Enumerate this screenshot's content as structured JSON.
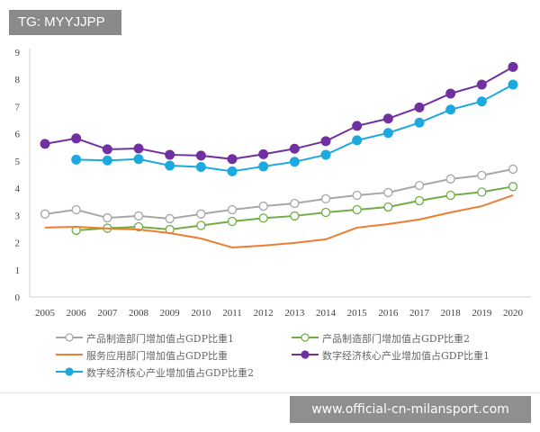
{
  "overlay": {
    "tag": "TG: MYYJJPP",
    "watermark": "www.official-cn-milansport.com"
  },
  "chart_data": {
    "type": "line",
    "x": [
      2005,
      2006,
      2007,
      2008,
      2009,
      2010,
      2011,
      2012,
      2013,
      2014,
      2015,
      2016,
      2017,
      2018,
      2019,
      2020
    ],
    "ylim": [
      0,
      9
    ],
    "yticks": [
      0,
      1,
      2,
      3,
      4,
      5,
      6,
      7,
      8,
      9
    ],
    "grid": false,
    "legend": "bottom",
    "series": [
      {
        "name": "产品制造部门增加值占GDP比重1",
        "color": "#a6a6a6",
        "marker": "hollow-circle",
        "values": [
          3.05,
          3.21,
          2.91,
          2.98,
          2.88,
          3.05,
          3.21,
          3.34,
          3.44,
          3.61,
          3.74,
          3.84,
          4.1,
          4.34,
          4.47,
          4.7
        ]
      },
      {
        "name": "产品制造部门增加值占GDP比重2",
        "color": "#70ad47",
        "marker": "hollow-circle",
        "values": [
          null,
          2.45,
          2.53,
          2.58,
          2.48,
          2.63,
          2.78,
          2.9,
          2.98,
          3.11,
          3.21,
          3.31,
          3.54,
          3.74,
          3.86,
          4.06
        ]
      },
      {
        "name": "服务应用部门增加值占GDP比重",
        "color": "#ed7d31",
        "marker": "none",
        "values": [
          2.55,
          2.58,
          2.52,
          2.48,
          2.35,
          2.15,
          1.82,
          1.89,
          1.99,
          2.12,
          2.55,
          2.68,
          2.85,
          3.11,
          3.34,
          3.74
        ]
      },
      {
        "name": "数字经济核心产业增加值占GDP比重1",
        "color": "#7030a0",
        "marker": "filled-circle",
        "values": [
          5.63,
          5.83,
          5.43,
          5.46,
          5.23,
          5.2,
          5.07,
          5.25,
          5.45,
          5.73,
          6.29,
          6.56,
          6.97,
          7.48,
          7.81,
          8.46
        ]
      },
      {
        "name": "数字经济核心产业增加值占GDP比重2",
        "color": "#1ca9e0",
        "marker": "filled-circle",
        "values": [
          null,
          5.05,
          5.02,
          5.07,
          4.83,
          4.78,
          4.62,
          4.8,
          4.97,
          5.23,
          5.76,
          6.03,
          6.41,
          6.89,
          7.19,
          7.81
        ]
      }
    ]
  }
}
